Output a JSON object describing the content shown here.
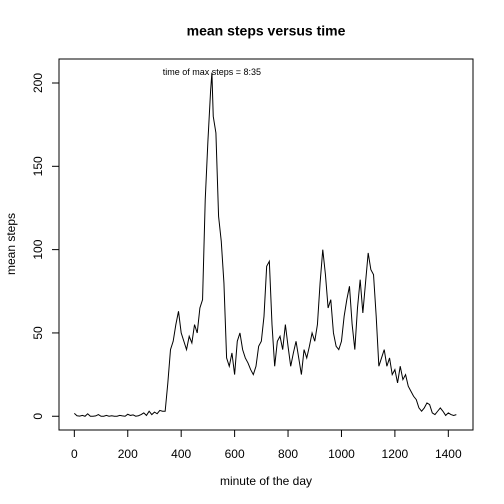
{
  "chart_data": {
    "type": "line",
    "title": "mean steps versus time",
    "x_label": "minute of the day",
    "y_label": "mean steps",
    "annotation": "time of max steps =  8:35",
    "x": [
      0,
      10,
      20,
      30,
      40,
      50,
      60,
      70,
      80,
      90,
      100,
      110,
      120,
      130,
      140,
      150,
      160,
      170,
      180,
      190,
      200,
      210,
      220,
      230,
      240,
      250,
      260,
      270,
      280,
      290,
      300,
      310,
      320,
      330,
      340,
      350,
      360,
      370,
      380,
      390,
      400,
      410,
      420,
      430,
      440,
      450,
      460,
      470,
      480,
      490,
      500,
      510,
      515,
      520,
      530,
      540,
      550,
      560,
      570,
      580,
      590,
      600,
      610,
      620,
      630,
      640,
      650,
      660,
      670,
      680,
      690,
      700,
      710,
      720,
      730,
      740,
      750,
      760,
      770,
      780,
      790,
      800,
      810,
      820,
      830,
      840,
      850,
      860,
      870,
      880,
      890,
      900,
      910,
      920,
      930,
      940,
      950,
      960,
      970,
      980,
      990,
      1000,
      1010,
      1020,
      1030,
      1040,
      1050,
      1060,
      1070,
      1080,
      1090,
      1100,
      1110,
      1120,
      1130,
      1140,
      1150,
      1160,
      1170,
      1180,
      1190,
      1200,
      1210,
      1220,
      1230,
      1240,
      1250,
      1260,
      1270,
      1280,
      1290,
      1300,
      1310,
      1320,
      1330,
      1340,
      1350,
      1360,
      1370,
      1380,
      1390,
      1400,
      1410,
      1420,
      1430
    ],
    "series": [
      {
        "name": "mean steps",
        "color": "#000000",
        "values": [
          1.7,
          0.3,
          0.1,
          0.5,
          0,
          1.5,
          0,
          0,
          0.2,
          1,
          0,
          0,
          0.5,
          0,
          0.3,
          0,
          0,
          0.5,
          0.2,
          0,
          1.2,
          0.5,
          0.8,
          0,
          0.3,
          1,
          2,
          0.5,
          3,
          1,
          2.5,
          1.5,
          3.5,
          3,
          3,
          20,
          40,
          45,
          55,
          63,
          50,
          45,
          40,
          48,
          44,
          55,
          50,
          65,
          70,
          130,
          165,
          195,
          206.17,
          180,
          170,
          120,
          105,
          80,
          35,
          30,
          38,
          25,
          45,
          50,
          40,
          35,
          32,
          28,
          25,
          30,
          42,
          45,
          60,
          90,
          93,
          55,
          30,
          45,
          48,
          40,
          55,
          42,
          30,
          38,
          45,
          35,
          25,
          40,
          35,
          42,
          50,
          45,
          55,
          80,
          100,
          85,
          65,
          70,
          50,
          42,
          40,
          45,
          60,
          70,
          78,
          55,
          40,
          65,
          82,
          62,
          80,
          98,
          88,
          85,
          60,
          30,
          35,
          40,
          30,
          35,
          25,
          28,
          20,
          30,
          22,
          25,
          18,
          15,
          12,
          10,
          5,
          3,
          5,
          8,
          7,
          2,
          1,
          3,
          5,
          3,
          0.5,
          2,
          1,
          0.5,
          1
        ]
      }
    ],
    "annotation_x": 515,
    "annotation_y": 206.17,
    "xlim": [
      -57.4,
      1492.4
    ],
    "ylim": [
      -8.25,
      214.4
    ],
    "xticks": [
      0,
      200,
      400,
      600,
      800,
      1000,
      1200,
      1400
    ],
    "yticks": [
      0,
      50,
      100,
      150,
      200
    ],
    "grid": false
  }
}
